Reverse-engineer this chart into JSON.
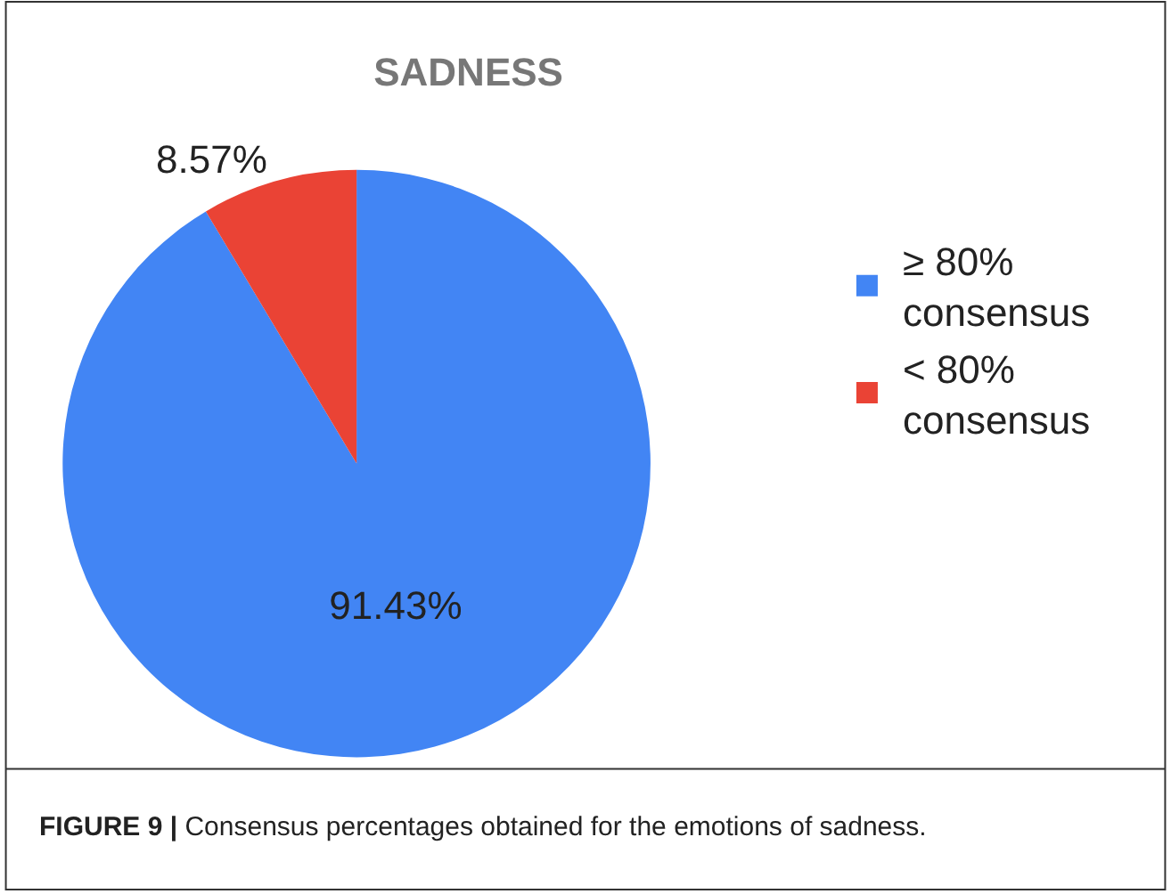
{
  "chart_data": {
    "type": "pie",
    "title": "SADNESS",
    "categories": [
      "≥ 80% consensus",
      "< 80% consensus"
    ],
    "values": [
      91.43,
      8.57
    ],
    "colors": [
      "#4285f4",
      "#ea4335"
    ],
    "value_labels": [
      "91.43%",
      "8.57%"
    ],
    "legend": "right",
    "annotations": [
      "FIGURE 9 | Consensus percentages obtained for the emotions of sadness."
    ]
  }
}
